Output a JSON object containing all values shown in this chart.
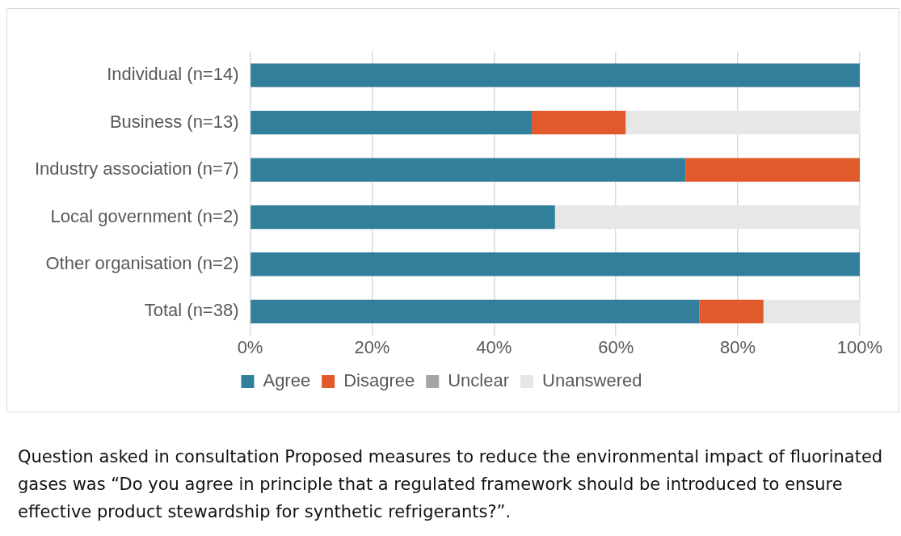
{
  "chart_data": {
    "type": "bar",
    "orientation": "horizontal",
    "stacked": true,
    "categories": [
      "Individual (n=14)",
      "Business (n=13)",
      "Industry association (n=7)",
      "Local government (n=2)",
      "Other organisation (n=2)",
      "Total (n=38)"
    ],
    "series": [
      {
        "name": "Agree",
        "color": "#327f9c",
        "values": [
          100,
          46.2,
          71.4,
          50,
          100,
          73.7
        ]
      },
      {
        "name": "Disagree",
        "color": "#e05a2b",
        "values": [
          0,
          15.4,
          28.6,
          0,
          0,
          10.5
        ]
      },
      {
        "name": "Unclear",
        "color": "#a5a5a5",
        "values": [
          0,
          0,
          0,
          0,
          0,
          0
        ]
      },
      {
        "name": "Unanswered",
        "color": "#e7e7e7",
        "values": [
          0,
          38.5,
          0,
          50,
          0,
          15.8
        ]
      }
    ],
    "xlim": [
      0,
      100
    ],
    "xticks": [
      {
        "value": 0,
        "label": "0%"
      },
      {
        "value": 20,
        "label": "20%"
      },
      {
        "value": 40,
        "label": "40%"
      },
      {
        "value": 60,
        "label": "60%"
      },
      {
        "value": 80,
        "label": "80%"
      },
      {
        "value": 100,
        "label": "100%"
      }
    ],
    "grid": "x",
    "legend": "bottom",
    "annotations": [
      "Question asked in consultation Proposed measures to reduce the environmental impact of fluorinated gases was “Do you agree in principle that a regulated framework should be introduced to ensure effective product stewardship for synthetic refrigerants?”."
    ]
  }
}
